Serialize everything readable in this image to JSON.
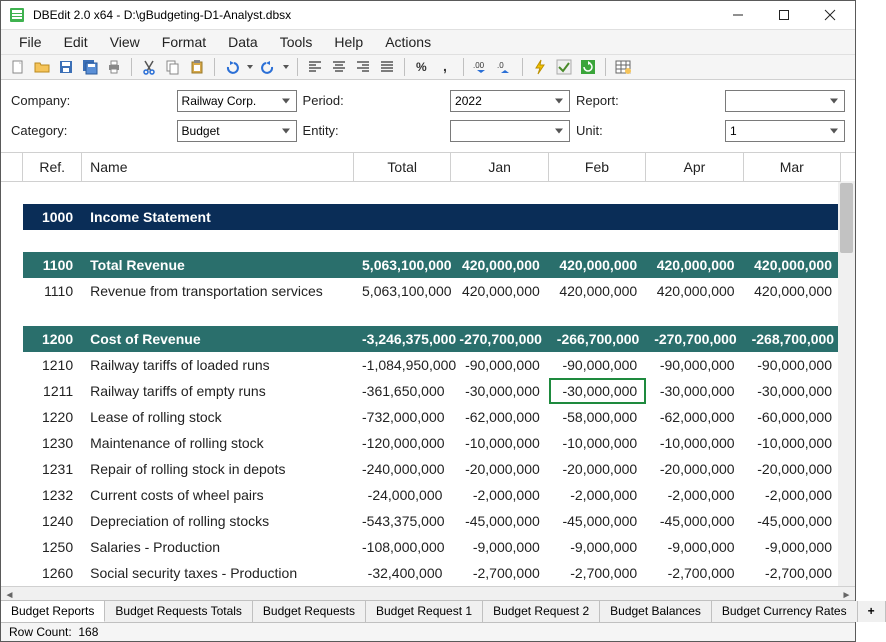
{
  "window": {
    "title": "DBEdit 2.0 x64 - D:\\gBudgeting-D1-Analyst.dbsx"
  },
  "menu": [
    "File",
    "Edit",
    "View",
    "Format",
    "Data",
    "Tools",
    "Help",
    "Actions"
  ],
  "toolbar_icons": [
    "new-file-icon",
    "open-folder-icon",
    "save-icon",
    "save-all-icon",
    "print-icon",
    "|",
    "cut-icon",
    "copy-icon",
    "paste-icon",
    "|",
    "undo-icon",
    "dropdown-icon",
    "redo-icon",
    "dropdown-icon",
    "|",
    "align-left-icon",
    "align-center-icon",
    "align-right-icon",
    "justify-icon",
    "|",
    "percent-icon",
    "comma-icon",
    "|",
    "decimal-inc-icon",
    "decimal-dec-icon",
    "|",
    "lightning-icon",
    "check-icon",
    "refresh-icon",
    "|",
    "table-icon"
  ],
  "filters": {
    "company_label": "Company:",
    "company_value": "Railway Corp.",
    "period_label": "Period:",
    "period_value": "2022",
    "report_label": "Report:",
    "report_value": "",
    "category_label": "Category:",
    "category_value": "Budget",
    "entity_label": "Entity:",
    "entity_value": "",
    "unit_label": "Unit:",
    "unit_value": "1"
  },
  "columns": [
    "Ref.",
    "Name",
    "Total",
    "Jan",
    "Feb",
    "Apr",
    "Mar"
  ],
  "rows": [
    {
      "type": "spacer"
    },
    {
      "type": "section",
      "class": "navy",
      "ref": "1000",
      "name": "Income Statement",
      "vals": [
        "",
        "",
        "",
        "",
        ""
      ]
    },
    {
      "type": "spacer"
    },
    {
      "type": "section",
      "class": "teal",
      "ref": "1100",
      "name": "Total Revenue",
      "vals": [
        "5,063,100,000",
        "420,000,000",
        "420,000,000",
        "420,000,000",
        "420,000,000"
      ]
    },
    {
      "type": "data",
      "ref": "1110",
      "name": "Revenue from transportation services",
      "vals": [
        "5,063,100,000",
        "420,000,000",
        "420,000,000",
        "420,000,000",
        "420,000,000"
      ]
    },
    {
      "type": "spacer"
    },
    {
      "type": "section",
      "class": "teal",
      "ref": "1200",
      "name": "Cost of Revenue",
      "vals": [
        "-3,246,375,000",
        "-270,700,000",
        "-266,700,000",
        "-270,700,000",
        "-268,700,000"
      ]
    },
    {
      "type": "data",
      "ref": "1210",
      "name": "Railway tariffs of loaded runs",
      "vals": [
        "-1,084,950,000",
        "-90,000,000",
        "-90,000,000",
        "-90,000,000",
        "-90,000,000"
      ]
    },
    {
      "type": "data",
      "ref": "1211",
      "name": "Railway tariffs of empty runs",
      "vals": [
        "-361,650,000",
        "-30,000,000",
        "-30,000,000",
        "-30,000,000",
        "-30,000,000"
      ],
      "selected": 2
    },
    {
      "type": "data",
      "ref": "1220",
      "name": "Lease of rolling stock",
      "vals": [
        "-732,000,000",
        "-62,000,000",
        "-58,000,000",
        "-62,000,000",
        "-60,000,000"
      ]
    },
    {
      "type": "data",
      "ref": "1230",
      "name": "Maintenance of rolling stock",
      "vals": [
        "-120,000,000",
        "-10,000,000",
        "-10,000,000",
        "-10,000,000",
        "-10,000,000"
      ]
    },
    {
      "type": "data",
      "ref": "1231",
      "name": "Repair of rolling stock in depots",
      "vals": [
        "-240,000,000",
        "-20,000,000",
        "-20,000,000",
        "-20,000,000",
        "-20,000,000"
      ]
    },
    {
      "type": "data",
      "ref": "1232",
      "name": "Current costs of wheel pairs",
      "vals": [
        "-24,000,000",
        "-2,000,000",
        "-2,000,000",
        "-2,000,000",
        "-2,000,000"
      ]
    },
    {
      "type": "data",
      "ref": "1240",
      "name": "Depreciation of rolling stocks",
      "vals": [
        "-543,375,000",
        "-45,000,000",
        "-45,000,000",
        "-45,000,000",
        "-45,000,000"
      ]
    },
    {
      "type": "data",
      "ref": "1250",
      "name": "Salaries - Production",
      "vals": [
        "-108,000,000",
        "-9,000,000",
        "-9,000,000",
        "-9,000,000",
        "-9,000,000"
      ]
    },
    {
      "type": "data",
      "ref": "1260",
      "name": "Social security taxes - Production",
      "vals": [
        "-32,400,000",
        "-2,700,000",
        "-2,700,000",
        "-2,700,000",
        "-2,700,000"
      ]
    }
  ],
  "sheet_tabs": [
    "Budget Reports",
    "Budget Requests Totals",
    "Budget Requests",
    "Budget Request 1",
    "Budget Request 2",
    "Budget Balances",
    "Budget Currency Rates"
  ],
  "active_tab": 0,
  "status": {
    "row_count_label": "Row Count:",
    "row_count_value": "168"
  },
  "colors": {
    "navy": "#0a2d57",
    "teal": "#2a6f6c",
    "select_border": "#1e8a3e"
  }
}
